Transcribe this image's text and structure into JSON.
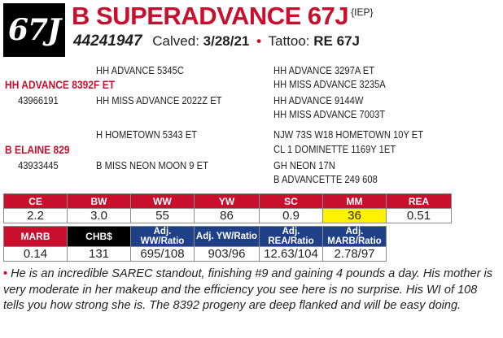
{
  "lot": "67J",
  "animal": {
    "name": "B SUPERADVANCE 67J",
    "tag": "{IEP}",
    "reg": "44241947",
    "calved_label": "Calved:",
    "calved": "3/28/21",
    "tattoo_label": "Tattoo:",
    "tattoo": "RE 67J"
  },
  "pedigree": {
    "sire_sire": "HH ADVANCE 5345C",
    "sss": "HH ADVANCE 3297A ET",
    "ssd": "HH MISS ADVANCE 3235A",
    "sire": "HH ADVANCE 8392F ET",
    "sire_reg": "43966191",
    "sire_dam": "HH MISS ADVANCE 2022Z ET",
    "sds": "HH ADVANCE 9144W",
    "sdd": "HH MISS ADVANCE 7003T",
    "dam_sire": "H HOMETOWN 5343 ET",
    "dss": "NJW 73S W18 HOMETOWN 10Y ET",
    "dsd": "CL 1 DOMINETTE 1169Y 1ET",
    "dam": "B ELAINE 829",
    "dam_reg": "43933445",
    "dam_dam": "B MISS NEON MOON 9 ET",
    "dds": "GH NEON 17N",
    "ddd": "B ADVANCETTE 249 608"
  },
  "epd_row1": {
    "headers": [
      "CE",
      "BW",
      "WW",
      "YW",
      "SC",
      "MM",
      "REA"
    ],
    "values": [
      "2.2",
      "3.0",
      "55",
      "86",
      "0.9",
      "36",
      "0.51"
    ]
  },
  "epd_row2": {
    "headers": [
      "MARB",
      "CHB$",
      "Adj. WW/Ratio",
      "Adj. YW/Ratio",
      "Adj. REA/Ratio",
      "Adj. MARB/Ratio"
    ],
    "values": [
      "0.14",
      "131",
      "695/108",
      "903/96",
      "12.63/104",
      "2.78/97"
    ]
  },
  "colors": {
    "accent_red": "#c8102e",
    "accent_blue": "#1f3f86",
    "highlight": "#fff200"
  },
  "description": {
    "bullet": "•",
    "text": "He is an incredible SAREC standout, finishing #9 and gaining 4 pounds a day. His mother is very moderate in her makeup and the efficiency you see here is no surprise. His WI of 108 tells you how strong she is. The 8392 progeny are deep flanked and will be easy doing."
  }
}
